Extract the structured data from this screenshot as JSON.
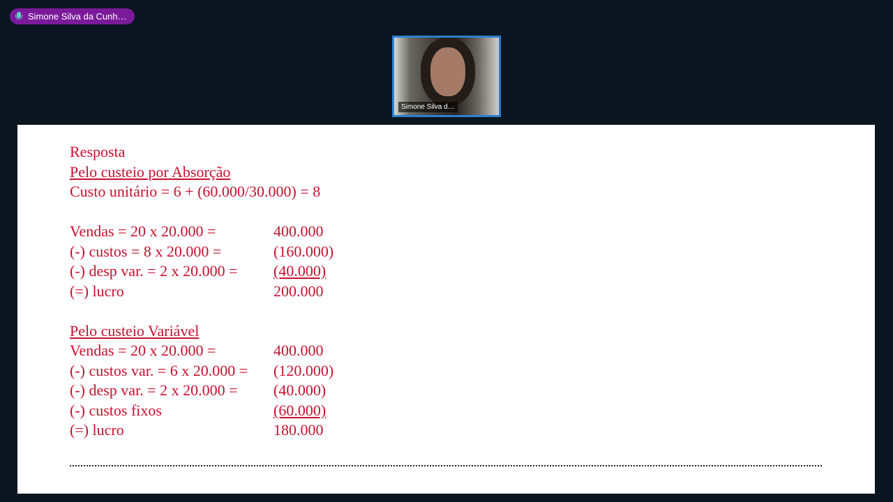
{
  "speaker_indicator": {
    "name": "Simone Silva da Cunh…"
  },
  "video_tile": {
    "name": "Simone Silva d…"
  },
  "slide": {
    "title": "Resposta",
    "section1": "Pelo custeio por Absorção",
    "unit_cost": "Custo unitário = 6 + (60.000/30.000) = 8",
    "absorcao": [
      {
        "label": "Vendas = 20 x 20.000 =",
        "value": "400.000"
      },
      {
        "label": "(-) custos = 8 x 20.000 =",
        "value": "(160.000)"
      },
      {
        "label": "(-) desp var. =  2 x 20.000 =",
        "value": "(40.000)"
      },
      {
        "label": "(=) lucro",
        "value": "200.000"
      }
    ],
    "section2": "Pelo custeio Variável",
    "variavel": [
      {
        "label": "Vendas = 20 x 20.000 =",
        "value": "400.000"
      },
      {
        "label": "(-) custos var. = 6 x 20.000 =",
        "value": "(120.000)"
      },
      {
        "label": "(-) desp var. =  2 x 20.000 =",
        "value": "(40.000)"
      },
      {
        "label": "(-) custos fixos",
        "value": "(60.000)"
      },
      {
        "label": "(=) lucro",
        "value": "180.000"
      }
    ]
  }
}
